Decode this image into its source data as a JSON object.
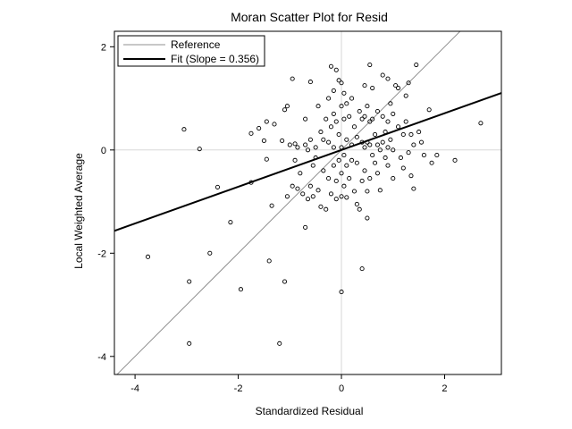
{
  "chart_data": {
    "type": "scatter",
    "title": "Moran Scatter Plot for Resid",
    "xlabel": "Standardized Residual",
    "ylabel": "Local Weighted Average",
    "xlim": [
      -4.4,
      3.1
    ],
    "ylim": [
      -4.35,
      2.3
    ],
    "x_ticks": [
      {
        "value": -4,
        "label": "-4"
      },
      {
        "value": -2,
        "label": "-2"
      },
      {
        "value": 0,
        "label": "0"
      },
      {
        "value": 2,
        "label": "2"
      }
    ],
    "y_ticks": [
      {
        "value": 2,
        "label": "2"
      },
      {
        "value": 0,
        "label": "0"
      },
      {
        "value": -2,
        "label": "-2"
      },
      {
        "value": -4,
        "label": "-4"
      }
    ],
    "grid": false,
    "zero_lines": true,
    "legend_position": "top-left",
    "legend": [
      {
        "name": "Reference",
        "style": "thin-gray"
      },
      {
        "name": "Fit (Slope = 0.356)",
        "style": "thick-black"
      }
    ],
    "series": [
      {
        "name": "Reference",
        "kind": "line",
        "slope": 1,
        "intercept": 0,
        "color": "#909090"
      },
      {
        "name": "Fit (Slope = 0.356)",
        "kind": "line",
        "slope": 0.356,
        "intercept": 0,
        "color": "#000000"
      },
      {
        "kind": "points",
        "color": "#000000",
        "points": [
          [
            -3.75,
            -2.07
          ],
          [
            -3.05,
            0.4
          ],
          [
            -2.95,
            -2.55
          ],
          [
            -2.95,
            -3.75
          ],
          [
            -2.75,
            0.02
          ],
          [
            -2.55,
            -2.0
          ],
          [
            -2.4,
            -0.72
          ],
          [
            -2.15,
            -1.4
          ],
          [
            -1.95,
            -2.7
          ],
          [
            -1.75,
            -0.63
          ],
          [
            -1.75,
            0.32
          ],
          [
            -1.6,
            0.42
          ],
          [
            -1.5,
            0.18
          ],
          [
            -1.45,
            0.55
          ],
          [
            -1.45,
            -0.18
          ],
          [
            -1.4,
            -2.15
          ],
          [
            -1.35,
            -1.08
          ],
          [
            -1.3,
            0.5
          ],
          [
            -1.2,
            -3.75
          ],
          [
            -1.15,
            0.18
          ],
          [
            -1.1,
            -2.55
          ],
          [
            -1.1,
            0.78
          ],
          [
            -1.05,
            0.85
          ],
          [
            -1.05,
            -0.9
          ],
          [
            -1.0,
            0.1
          ],
          [
            -0.95,
            1.38
          ],
          [
            -0.95,
            -0.7
          ],
          [
            -0.9,
            0.12
          ],
          [
            -0.9,
            -0.2
          ],
          [
            -0.85,
            0.05
          ],
          [
            -0.85,
            -0.75
          ],
          [
            -0.8,
            -0.45
          ],
          [
            -0.75,
            -0.85
          ],
          [
            -0.7,
            0.6
          ],
          [
            -0.7,
            0.1
          ],
          [
            -0.7,
            -1.5
          ],
          [
            -0.65,
            0.0
          ],
          [
            -0.65,
            -0.95
          ],
          [
            -0.6,
            1.32
          ],
          [
            -0.6,
            0.2
          ],
          [
            -0.6,
            -0.7
          ],
          [
            -0.55,
            -0.3
          ],
          [
            -0.55,
            -0.9
          ],
          [
            -0.5,
            0.05
          ],
          [
            -0.5,
            -0.15
          ],
          [
            -0.45,
            0.85
          ],
          [
            -0.45,
            -0.78
          ],
          [
            -0.4,
            0.35
          ],
          [
            -0.4,
            -1.1
          ],
          [
            -0.35,
            0.2
          ],
          [
            -0.35,
            -0.4
          ],
          [
            -0.3,
            0.6
          ],
          [
            -0.3,
            -1.15
          ],
          [
            -0.25,
            1.0
          ],
          [
            -0.25,
            0.15
          ],
          [
            -0.25,
            -0.55
          ],
          [
            -0.2,
            1.62
          ],
          [
            -0.2,
            0.45
          ],
          [
            -0.2,
            -0.85
          ],
          [
            -0.15,
            1.15
          ],
          [
            -0.15,
            0.7
          ],
          [
            -0.15,
            0.05
          ],
          [
            -0.15,
            -0.3
          ],
          [
            -0.1,
            1.55
          ],
          [
            -0.1,
            0.55
          ],
          [
            -0.1,
            -0.6
          ],
          [
            -0.1,
            -0.95
          ],
          [
            -0.05,
            1.35
          ],
          [
            -0.05,
            0.3
          ],
          [
            -0.05,
            -0.2
          ],
          [
            0.0,
            1.3
          ],
          [
            0.0,
            0.85
          ],
          [
            0.0,
            0.05
          ],
          [
            0.0,
            -0.45
          ],
          [
            0.0,
            -0.9
          ],
          [
            0.0,
            -2.75
          ],
          [
            0.05,
            1.1
          ],
          [
            0.05,
            0.6
          ],
          [
            0.05,
            -0.1
          ],
          [
            0.05,
            -0.7
          ],
          [
            0.1,
            0.9
          ],
          [
            0.1,
            0.2
          ],
          [
            0.1,
            -0.3
          ],
          [
            0.1,
            -0.92
          ],
          [
            0.15,
            0.65
          ],
          [
            0.15,
            -0.55
          ],
          [
            0.2,
            1.0
          ],
          [
            0.2,
            0.1
          ],
          [
            0.2,
            -0.2
          ],
          [
            0.25,
            0.45
          ],
          [
            0.25,
            -0.8
          ],
          [
            0.3,
            0.25
          ],
          [
            0.3,
            -0.25
          ],
          [
            0.3,
            -1.05
          ],
          [
            0.35,
            0.75
          ],
          [
            0.35,
            -1.15
          ],
          [
            0.4,
            0.6
          ],
          [
            0.4,
            0.15
          ],
          [
            0.4,
            -0.6
          ],
          [
            0.4,
            -2.3
          ],
          [
            0.45,
            1.25
          ],
          [
            0.45,
            0.65
          ],
          [
            0.45,
            0.05
          ],
          [
            0.45,
            -0.4
          ],
          [
            0.5,
            0.85
          ],
          [
            0.5,
            0.15
          ],
          [
            0.5,
            -0.8
          ],
          [
            0.5,
            -1.32
          ],
          [
            0.55,
            1.65
          ],
          [
            0.55,
            0.55
          ],
          [
            0.55,
            0.1
          ],
          [
            0.55,
            -0.55
          ],
          [
            0.6,
            1.2
          ],
          [
            0.6,
            0.6
          ],
          [
            0.6,
            -0.1
          ],
          [
            0.65,
            0.3
          ],
          [
            0.65,
            -0.25
          ],
          [
            0.7,
            0.75
          ],
          [
            0.7,
            0.1
          ],
          [
            0.7,
            -0.45
          ],
          [
            0.75,
            0.0
          ],
          [
            0.75,
            -0.78
          ],
          [
            0.8,
            1.45
          ],
          [
            0.8,
            0.65
          ],
          [
            0.8,
            0.15
          ],
          [
            0.85,
            -0.15
          ],
          [
            0.85,
            0.35
          ],
          [
            0.9,
            1.38
          ],
          [
            0.9,
            0.55
          ],
          [
            0.9,
            0.05
          ],
          [
            0.9,
            -0.3
          ],
          [
            0.95,
            0.9
          ],
          [
            0.95,
            0.2
          ],
          [
            1.0,
            0.7
          ],
          [
            1.0,
            0.0
          ],
          [
            1.0,
            -0.55
          ],
          [
            1.05,
            1.25
          ],
          [
            1.1,
            1.2
          ],
          [
            1.1,
            0.45
          ],
          [
            1.15,
            -0.15
          ],
          [
            1.2,
            0.3
          ],
          [
            1.2,
            -0.35
          ],
          [
            1.25,
            1.05
          ],
          [
            1.25,
            0.55
          ],
          [
            1.3,
            1.3
          ],
          [
            1.3,
            -0.05
          ],
          [
            1.35,
            0.3
          ],
          [
            1.35,
            -0.5
          ],
          [
            1.4,
            0.1
          ],
          [
            1.4,
            -0.75
          ],
          [
            1.45,
            1.65
          ],
          [
            1.5,
            0.35
          ],
          [
            1.55,
            0.15
          ],
          [
            1.6,
            -0.1
          ],
          [
            1.7,
            0.78
          ],
          [
            1.75,
            -0.25
          ],
          [
            1.85,
            -0.1
          ],
          [
            2.2,
            -0.2
          ],
          [
            2.7,
            0.52
          ]
        ]
      }
    ]
  }
}
